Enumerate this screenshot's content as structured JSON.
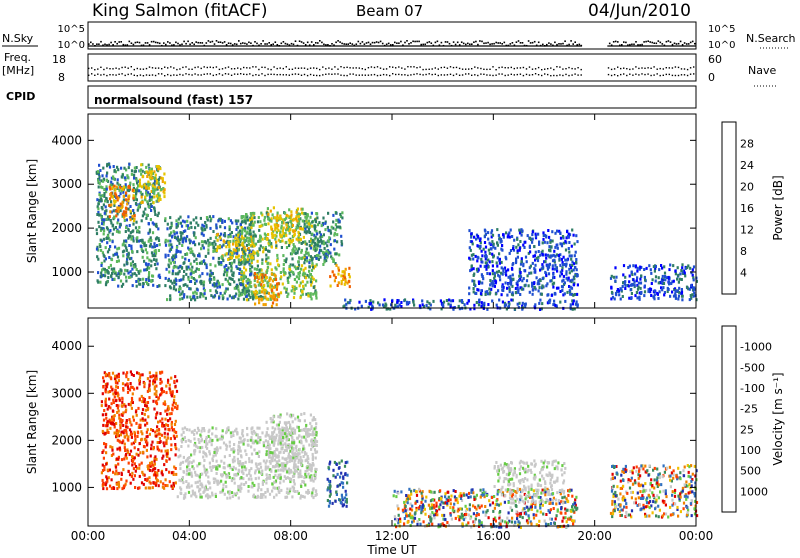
{
  "header": {
    "station": "King Salmon (fitACF)",
    "beam": "Beam 07",
    "date": "04/Jun/2010"
  },
  "top_strip": {
    "left_label": "N.Sky",
    "right_label": "N.Search",
    "ticks_left": [
      "10^5",
      "10^0"
    ],
    "ticks_right": [
      "10^5",
      "10^0"
    ]
  },
  "freq_strip": {
    "left_label_1": "Freq.",
    "left_label_2": "[MHz]",
    "right_label": "Nave",
    "ticks_left": [
      "18",
      "8"
    ],
    "ticks_right": [
      "60",
      "0"
    ]
  },
  "cpid": {
    "label": "CPID",
    "program": "normalsound (fast) 157"
  },
  "chart_data": [
    {
      "type": "heatmap",
      "title": "",
      "ylabel": "Slant Range [km]",
      "xlabel": "",
      "x_tick_labels": [
        "00:00",
        "04:00",
        "08:00",
        "12:00",
        "16:00",
        "20:00",
        "00:00"
      ],
      "x_range_hours": [
        0,
        24
      ],
      "y_ticks": [
        1000,
        2000,
        3000,
        4000
      ],
      "ylim": [
        180,
        4600
      ],
      "data_gap_hours": [
        19.5,
        20.5
      ],
      "colorbar": {
        "label": "Power [dB]",
        "ticks": [
          "4",
          "8",
          "12",
          "16",
          "20",
          "24",
          "28"
        ],
        "colors": [
          "#0000ff",
          "#1f4fd0",
          "#2e7d64",
          "#5cb85c",
          "#e6c400",
          "#f0a000",
          "#f06000",
          "#e00000"
        ]
      },
      "regions": [
        {
          "t": [
            0.3,
            2.8
          ],
          "r": [
            700,
            3500
          ],
          "level": 2
        },
        {
          "t": [
            0.8,
            1.8
          ],
          "r": [
            2200,
            3000
          ],
          "level": 5
        },
        {
          "t": [
            2.0,
            3.0
          ],
          "r": [
            2600,
            3500
          ],
          "level": 4
        },
        {
          "t": [
            3.0,
            6.5
          ],
          "r": [
            400,
            2300
          ],
          "level": 2
        },
        {
          "t": [
            5.0,
            6.5
          ],
          "r": [
            1300,
            1900
          ],
          "level": 4
        },
        {
          "t": [
            6.0,
            9.0
          ],
          "r": [
            400,
            2400
          ],
          "level": 3
        },
        {
          "t": [
            7.0,
            8.5
          ],
          "r": [
            1700,
            2500
          ],
          "level": 4
        },
        {
          "t": [
            8.5,
            10.0
          ],
          "r": [
            1200,
            2400
          ],
          "level": 2
        },
        {
          "t": [
            9.5,
            10.3
          ],
          "r": [
            700,
            1200
          ],
          "level": 5
        },
        {
          "t": [
            6.5,
            7.5
          ],
          "r": [
            250,
            1000
          ],
          "level": 5
        },
        {
          "t": [
            10.0,
            19.3
          ],
          "r": [
            180,
            400
          ],
          "level": 1
        },
        {
          "t": [
            15.0,
            19.3
          ],
          "r": [
            500,
            2000
          ],
          "level": 1
        },
        {
          "t": [
            20.6,
            24.0
          ],
          "r": [
            400,
            1200
          ],
          "level": 1
        }
      ]
    },
    {
      "type": "heatmap",
      "title": "",
      "ylabel": "Slant Range [km]",
      "xlabel": "Time UT",
      "x_tick_labels": [
        "00:00",
        "04:00",
        "08:00",
        "12:00",
        "16:00",
        "20:00",
        "00:00"
      ],
      "x_range_hours": [
        0,
        24
      ],
      "y_ticks": [
        1000,
        2000,
        3000,
        4000
      ],
      "ylim": [
        180,
        4600
      ],
      "data_gap_hours": [
        19.5,
        20.5
      ],
      "colorbar": {
        "label": "Velocity [m s⁻¹]",
        "ticks": [
          "1000",
          "500",
          "100",
          "25",
          "-25",
          "-100",
          "-500",
          "-1000"
        ],
        "colors": [
          "#2030b0",
          "#3070c0",
          "#3a8a5a",
          "#66cc44",
          "#c8c8c8",
          "#f0c000",
          "#f08000",
          "#ff4000",
          "#e00000"
        ]
      },
      "regions": [
        {
          "t": [
            0.5,
            3.5
          ],
          "r": [
            1000,
            3500
          ],
          "class": "neg"
        },
        {
          "t": [
            3.5,
            9.0
          ],
          "r": [
            800,
            2300
          ],
          "class": "zero"
        },
        {
          "t": [
            7.0,
            9.0
          ],
          "r": [
            1200,
            2600
          ],
          "class": "zero"
        },
        {
          "t": [
            9.4,
            10.2
          ],
          "r": [
            600,
            1600
          ],
          "class": "pos"
        },
        {
          "t": [
            12.0,
            19.3
          ],
          "r": [
            180,
            1000
          ],
          "class": "mixed"
        },
        {
          "t": [
            16.0,
            18.8
          ],
          "r": [
            700,
            1600
          ],
          "class": "zero"
        },
        {
          "t": [
            20.6,
            24.0
          ],
          "r": [
            400,
            1500
          ],
          "class": "mixed"
        }
      ]
    }
  ]
}
